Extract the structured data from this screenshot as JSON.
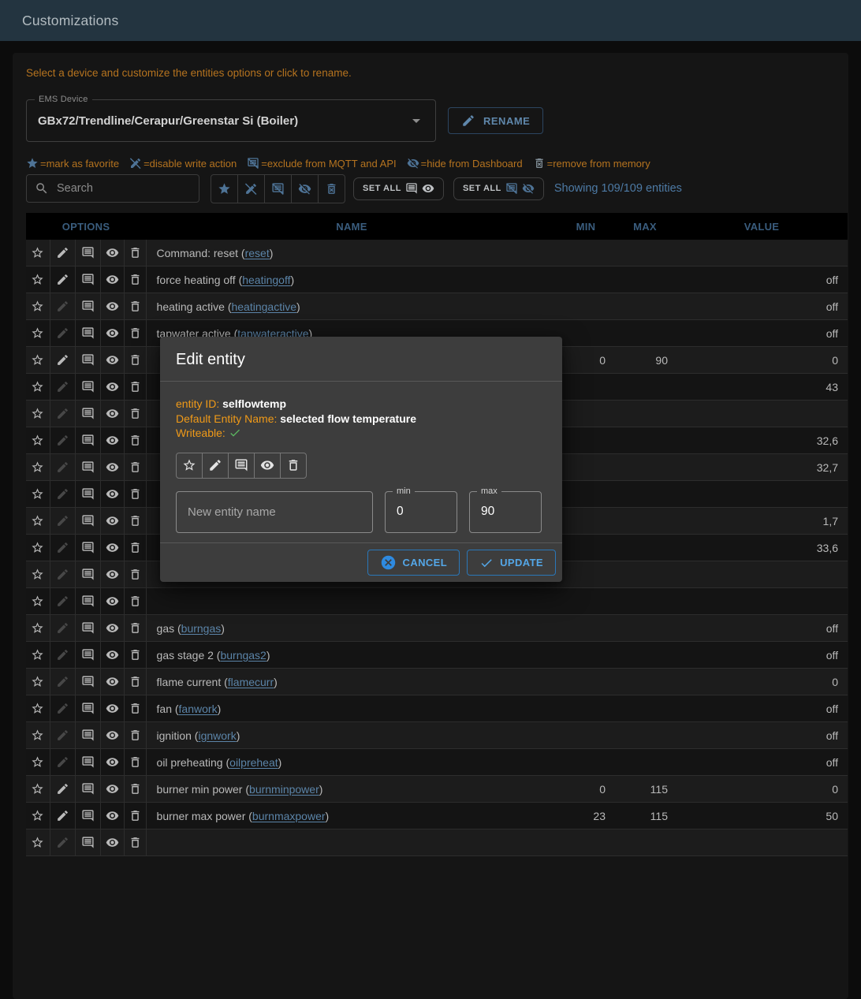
{
  "appbar": {
    "title": "Customizations"
  },
  "intro": "Select a device and customize the entities options or click to rename.",
  "device_select": {
    "label": "EMS Device",
    "value": "GBx72/Trendline/Cerapur/Greenstar Si (Boiler)"
  },
  "rename_button": "RENAME",
  "legend": [
    {
      "icon": "star-filled",
      "text": "=mark as favorite"
    },
    {
      "icon": "edit-off",
      "text": "=disable write action"
    },
    {
      "icon": "comment-off",
      "text": "=exclude from MQTT and API"
    },
    {
      "icon": "visibility-off",
      "text": "=hide from Dashboard"
    },
    {
      "icon": "delete-forever",
      "text": "=remove from memory"
    }
  ],
  "search": {
    "placeholder": "Search"
  },
  "set_all_buttons": {
    "first": "SET ALL",
    "second": "SET ALL"
  },
  "showing": "Showing 109/109 entities",
  "table": {
    "headers": {
      "options": "OPTIONS",
      "name": "NAME",
      "min": "MIN",
      "max": "MAX",
      "value": "VALUE"
    },
    "rows": [
      {
        "writeable": true,
        "label": "Command: reset",
        "id": "reset",
        "min": "",
        "max": "",
        "value": ""
      },
      {
        "writeable": true,
        "label": "force heating off",
        "id": "heatingoff",
        "min": "",
        "max": "",
        "value": "off"
      },
      {
        "writeable": false,
        "label": "heating active",
        "id": "heatingactive",
        "min": "",
        "max": "",
        "value": "off"
      },
      {
        "writeable": false,
        "label": "tapwater active",
        "id": "tapwateractive",
        "min": "",
        "max": "",
        "value": "off"
      },
      {
        "writeable": true,
        "label": "",
        "id": "",
        "hidden_by_dialog": true,
        "min": "0",
        "max": "90",
        "value": "0"
      },
      {
        "writeable": false,
        "label": "",
        "id": "",
        "hidden_by_dialog": true,
        "min": "",
        "max": "",
        "value": "43"
      },
      {
        "writeable": false,
        "label": "",
        "id": "",
        "hidden_by_dialog": true,
        "min": "",
        "max": "",
        "value": ""
      },
      {
        "writeable": false,
        "label": "",
        "id": "",
        "hidden_by_dialog": true,
        "min": "",
        "max": "",
        "value": "32,6"
      },
      {
        "writeable": false,
        "label": "",
        "id": "",
        "hidden_by_dialog": true,
        "min": "",
        "max": "",
        "value": "32,7"
      },
      {
        "writeable": false,
        "label": "",
        "id": "",
        "hidden_by_dialog": true,
        "min": "",
        "max": "",
        "value": ""
      },
      {
        "writeable": false,
        "label": "",
        "id": "",
        "hidden_by_dialog": true,
        "min": "",
        "max": "",
        "value": "1,7"
      },
      {
        "writeable": false,
        "label": "",
        "id": "",
        "hidden_by_dialog": true,
        "min": "",
        "max": "",
        "value": "33,6"
      },
      {
        "writeable": false,
        "label": "",
        "id": "",
        "hidden_by_dialog": true,
        "min": "",
        "max": "",
        "value": ""
      },
      {
        "writeable": false,
        "label": "",
        "id": "",
        "hidden_by_dialog": true,
        "min": "",
        "max": "",
        "value": ""
      },
      {
        "writeable": false,
        "label": "gas",
        "id": "burngas",
        "min": "",
        "max": "",
        "value": "off"
      },
      {
        "writeable": false,
        "label": "gas stage 2",
        "id": "burngas2",
        "min": "",
        "max": "",
        "value": "off"
      },
      {
        "writeable": false,
        "label": "flame current",
        "id": "flamecurr",
        "min": "",
        "max": "",
        "value": "0"
      },
      {
        "writeable": false,
        "label": "fan",
        "id": "fanwork",
        "min": "",
        "max": "",
        "value": "off"
      },
      {
        "writeable": false,
        "label": "ignition",
        "id": "ignwork",
        "min": "",
        "max": "",
        "value": "off"
      },
      {
        "writeable": false,
        "label": "oil preheating",
        "id": "oilpreheat",
        "min": "",
        "max": "",
        "value": "off"
      },
      {
        "writeable": true,
        "label": "burner min power",
        "id": "burnminpower",
        "min": "0",
        "max": "115",
        "value": "0"
      },
      {
        "writeable": true,
        "label": "burner max power",
        "id": "burnmaxpower",
        "min": "23",
        "max": "115",
        "value": "50"
      },
      {
        "writeable": false,
        "label": "",
        "id": "",
        "partial": true,
        "min": "",
        "max": "",
        "value": ""
      }
    ]
  },
  "dialog": {
    "title": "Edit entity",
    "entity_id_label": "entity ID:",
    "entity_id": "selflowtemp",
    "default_name_label": "Default Entity Name:",
    "default_name": "selected flow temperature",
    "writeable_label": "Writeable:",
    "name_input": {
      "placeholder": "New entity name",
      "value": ""
    },
    "min_input": {
      "label": "min",
      "value": "0"
    },
    "max_input": {
      "label": "max",
      "value": "90"
    },
    "cancel_button": "CANCEL",
    "update_button": "UPDATE"
  },
  "colors": {
    "appbar": "#233440",
    "panel": "#151515",
    "orange_dimmed": "#b5731f",
    "dialog_orange": "#f09a18",
    "steel_blue": "#4e7396",
    "link_blue": "#5b84a8",
    "header_blue": "#3a5d7e",
    "action_blue": "#54a7e8",
    "success_green": "#5cb860"
  }
}
